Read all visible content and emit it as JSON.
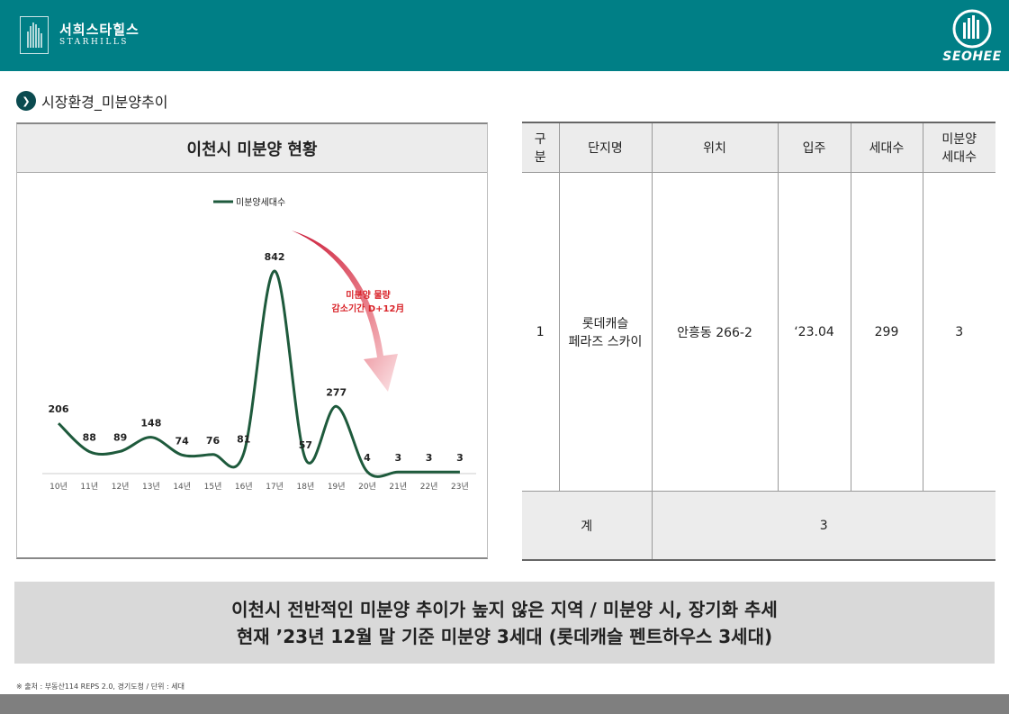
{
  "header": {
    "brand_name": "서희스타힐스",
    "brand_sub": "STARHILLS",
    "corp_name": "SEOHEE",
    "bg_color": "#007f86"
  },
  "section": {
    "bullet": "❯",
    "title": "시장환경_미분양추이"
  },
  "chart_data": {
    "type": "line",
    "title": "이천시 미분양 현황",
    "categories": [
      "10년",
      "11년",
      "12년",
      "13년",
      "14년",
      "15년",
      "16년",
      "17년",
      "18년",
      "19년",
      "20년",
      "21년",
      "22년",
      "23년"
    ],
    "series": [
      {
        "name": "미분양세대수",
        "values": [
          206,
          88,
          89,
          148,
          74,
          76,
          81,
          842,
          57,
          277,
          4,
          3,
          3,
          3
        ],
        "color": "#1e5a3c"
      }
    ],
    "annotation": {
      "line1": "미분양 물량",
      "line2": "감소기간 D+12月",
      "color": "#d9242a"
    },
    "legend_position": "top",
    "grid": false
  },
  "table": {
    "headers": [
      [
        "구",
        "분"
      ],
      [
        "단지명"
      ],
      [
        "위치"
      ],
      [
        "입주"
      ],
      [
        "세대수"
      ],
      [
        "미분양",
        "세대수"
      ]
    ],
    "rows": [
      {
        "no": "1",
        "name_l1": "롯데캐슬",
        "name_l2": "페라즈 스카이",
        "location": "안흥동 266-2",
        "move_in": "‘23.04",
        "households": "299",
        "unsold": "3"
      }
    ],
    "total_label": "계",
    "total_value": "3"
  },
  "summary": {
    "line1": "이천시 전반적인 미분양 추이가 높지 않은 지역 / 미분양 시, 장기화 추세",
    "line2": "현재 ’23년 12월 말 기준 미분양 3세대 (롯데캐슬 펜트하우스 3세대)"
  },
  "footnote": "※ 출처 : 부동산114 REPS 2.0, 경기도청 / 단위 : 세대"
}
